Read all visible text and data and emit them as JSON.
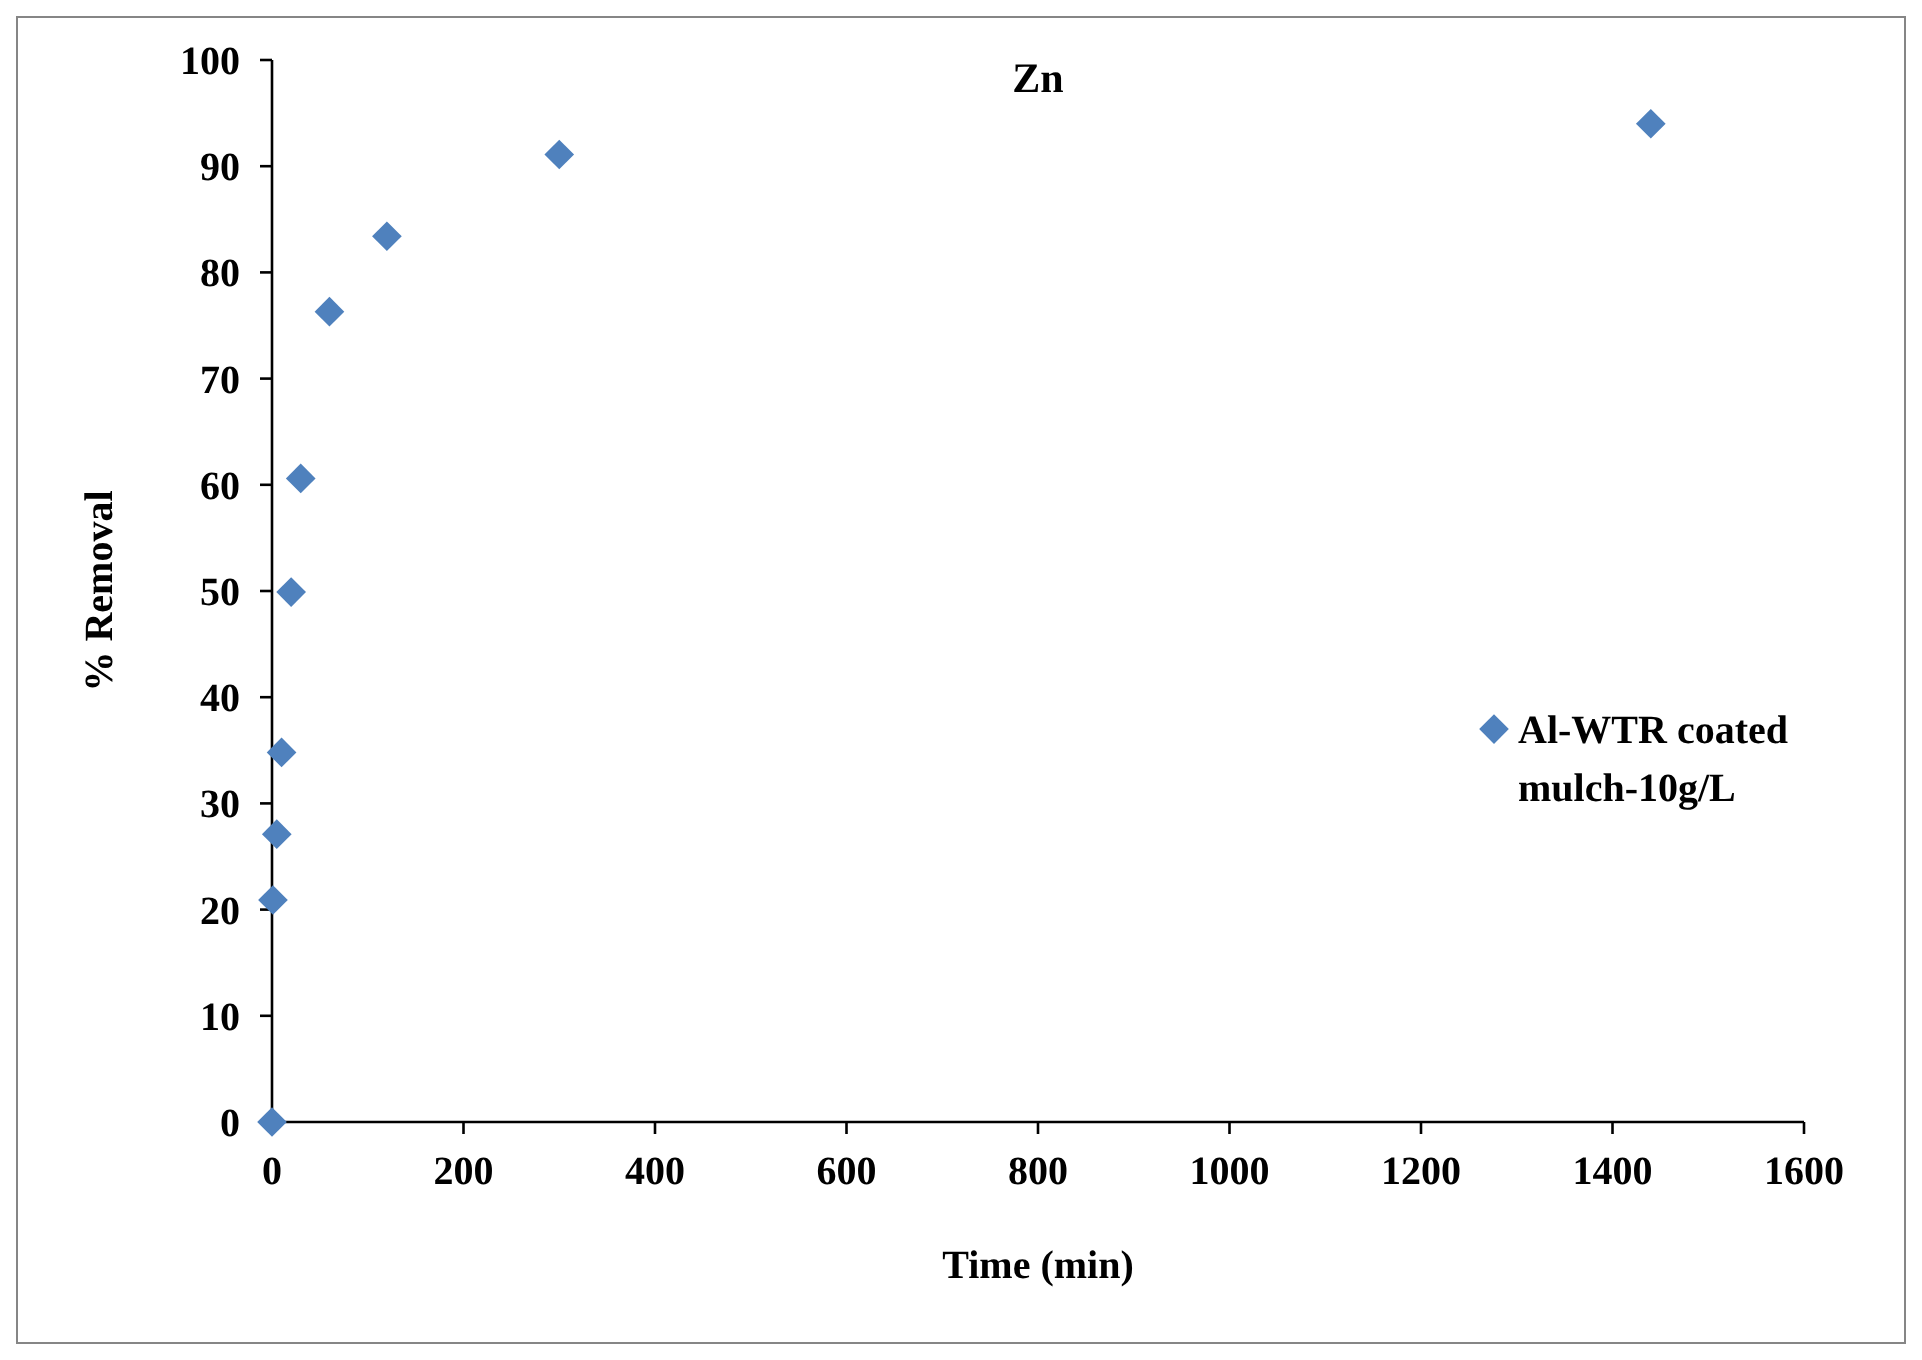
{
  "chart_data": {
    "type": "scatter",
    "title": "Zn",
    "xlabel": "Time (min)",
    "ylabel": "% Removal",
    "series": [
      {
        "name": "Al-WTR coated mulch-10g/L",
        "color": "#4f81bd",
        "x": [
          0,
          1,
          5,
          10,
          20,
          30,
          60,
          120,
          300,
          1440
        ],
        "values": [
          0,
          20.9,
          27.1,
          34.8,
          49.9,
          60.6,
          76.3,
          83.4,
          91.1,
          94.0
        ]
      }
    ],
    "xlim": [
      0,
      1600
    ],
    "xticks": [
      0,
      200,
      400,
      600,
      800,
      1000,
      1200,
      1400,
      1600
    ],
    "ylim": [
      0,
      100
    ],
    "yticks": [
      0,
      10,
      20,
      30,
      40,
      50,
      60,
      70,
      80,
      90,
      100
    ],
    "grid": false,
    "legend": "right",
    "marker": "diamond"
  }
}
